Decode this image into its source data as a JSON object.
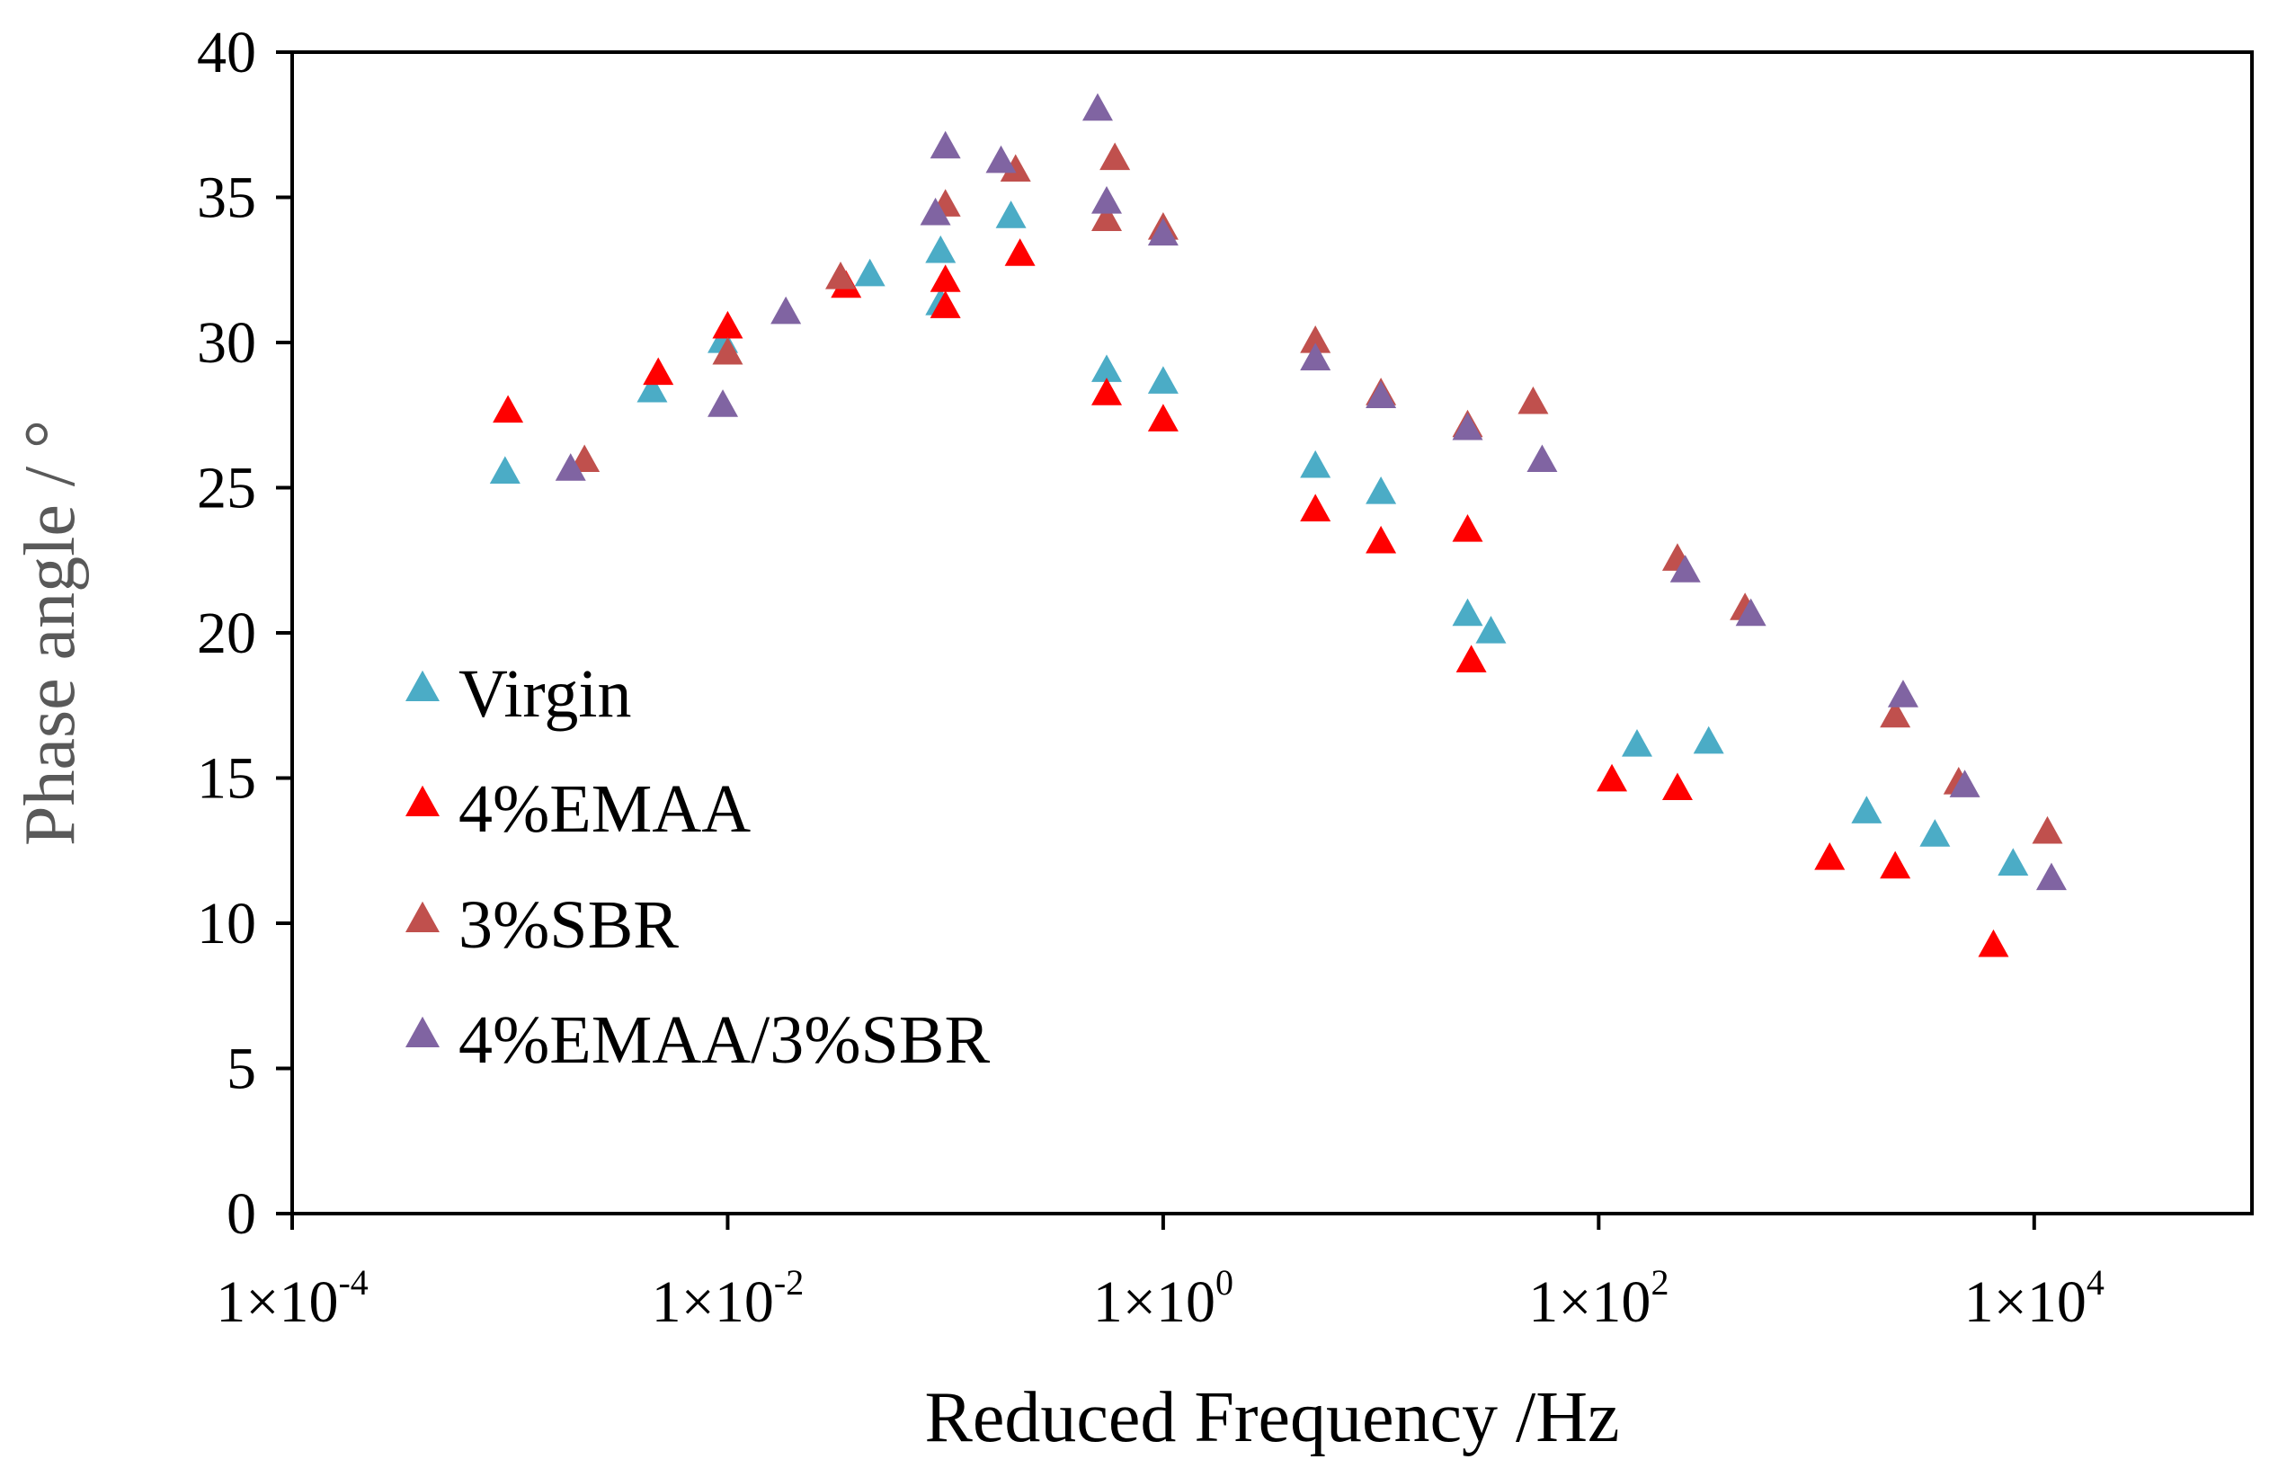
{
  "chart_data": {
    "type": "scatter",
    "title": "",
    "xlabel": "Reduced Frequency /Hz",
    "ylabel": "Phase angle / °",
    "xscale": "log",
    "xlim": [
      0.0001,
      100000
    ],
    "ylim": [
      0,
      40
    ],
    "grid": false,
    "legend_position": "lower-left",
    "y_ticks": [
      "0",
      "5",
      "10",
      "15",
      "20",
      "25",
      "30",
      "35",
      "40"
    ],
    "x_ticks": [
      {
        "base": "1×10",
        "exp": "-4",
        "value": 0.0001
      },
      {
        "base": "1×10",
        "exp": "-2",
        "value": 0.01
      },
      {
        "base": "1×10",
        "exp": "0",
        "value": 1
      },
      {
        "base": "1×10",
        "exp": "2",
        "value": 100
      },
      {
        "base": "1×10",
        "exp": "4",
        "value": 10000
      }
    ],
    "series": [
      {
        "name": "Virgin",
        "color": "#4bacc6",
        "marker": "triangle",
        "points": [
          [
            0.00095,
            25.5
          ],
          [
            0.0045,
            28.3
          ],
          [
            0.0095,
            30.0
          ],
          [
            0.045,
            32.3
          ],
          [
            0.095,
            33.1
          ],
          [
            0.095,
            31.3
          ],
          [
            0.2,
            34.3
          ],
          [
            0.55,
            29.0
          ],
          [
            1.0,
            28.6
          ],
          [
            5.0,
            25.7
          ],
          [
            10.0,
            24.8
          ],
          [
            25.0,
            20.6
          ],
          [
            32.0,
            20.0
          ],
          [
            150.0,
            16.1
          ],
          [
            320.0,
            16.2
          ],
          [
            1700.0,
            13.8
          ],
          [
            3500.0,
            13.0
          ],
          [
            8000.0,
            12.0
          ]
        ]
      },
      {
        "name": "4%EMAA",
        "color": "#ff0000",
        "marker": "triangle",
        "points": [
          [
            0.00098,
            27.6
          ],
          [
            0.0048,
            28.9
          ],
          [
            0.01,
            30.5
          ],
          [
            0.035,
            31.9
          ],
          [
            0.1,
            32.1
          ],
          [
            0.1,
            31.2
          ],
          [
            0.22,
            33.0
          ],
          [
            0.55,
            28.2
          ],
          [
            1.0,
            27.3
          ],
          [
            5.0,
            24.2
          ],
          [
            10.0,
            23.1
          ],
          [
            25.0,
            23.5
          ],
          [
            26.0,
            19.0
          ],
          [
            115.0,
            14.9
          ],
          [
            230.0,
            14.6
          ],
          [
            1150.0,
            12.2
          ],
          [
            2300.0,
            11.9
          ],
          [
            6500.0,
            9.2
          ]
        ]
      },
      {
        "name": "3%SBR",
        "color": "#c0504d",
        "marker": "triangle",
        "points": [
          [
            0.0022,
            25.9
          ],
          [
            0.01,
            29.6
          ],
          [
            0.033,
            32.2
          ],
          [
            0.1,
            34.7
          ],
          [
            0.21,
            35.9
          ],
          [
            0.55,
            34.2
          ],
          [
            0.6,
            36.3
          ],
          [
            1.0,
            33.9
          ],
          [
            5.0,
            30.0
          ],
          [
            10.0,
            28.2
          ],
          [
            25.0,
            27.1
          ],
          [
            50.0,
            27.9
          ],
          [
            230.0,
            22.5
          ],
          [
            470.0,
            20.8
          ],
          [
            2300.0,
            17.1
          ],
          [
            4500.0,
            14.8
          ],
          [
            11500.0,
            13.1
          ]
        ]
      },
      {
        "name": "4%EMAA/3%SBR",
        "color": "#8064a2",
        "marker": "triangle",
        "points": [
          [
            0.0019,
            25.6
          ],
          [
            0.0095,
            27.8
          ],
          [
            0.0185,
            31.0
          ],
          [
            0.09,
            34.4
          ],
          [
            0.1,
            36.7
          ],
          [
            0.18,
            36.2
          ],
          [
            0.5,
            38.0
          ],
          [
            0.55,
            34.8
          ],
          [
            1.0,
            33.7
          ],
          [
            5.0,
            29.4
          ],
          [
            10.0,
            28.1
          ],
          [
            25.0,
            27.0
          ],
          [
            55.0,
            25.9
          ],
          [
            250.0,
            22.1
          ],
          [
            500.0,
            20.6
          ],
          [
            2500.0,
            17.8
          ],
          [
            4800.0,
            14.7
          ],
          [
            12000.0,
            11.5
          ]
        ]
      }
    ]
  }
}
